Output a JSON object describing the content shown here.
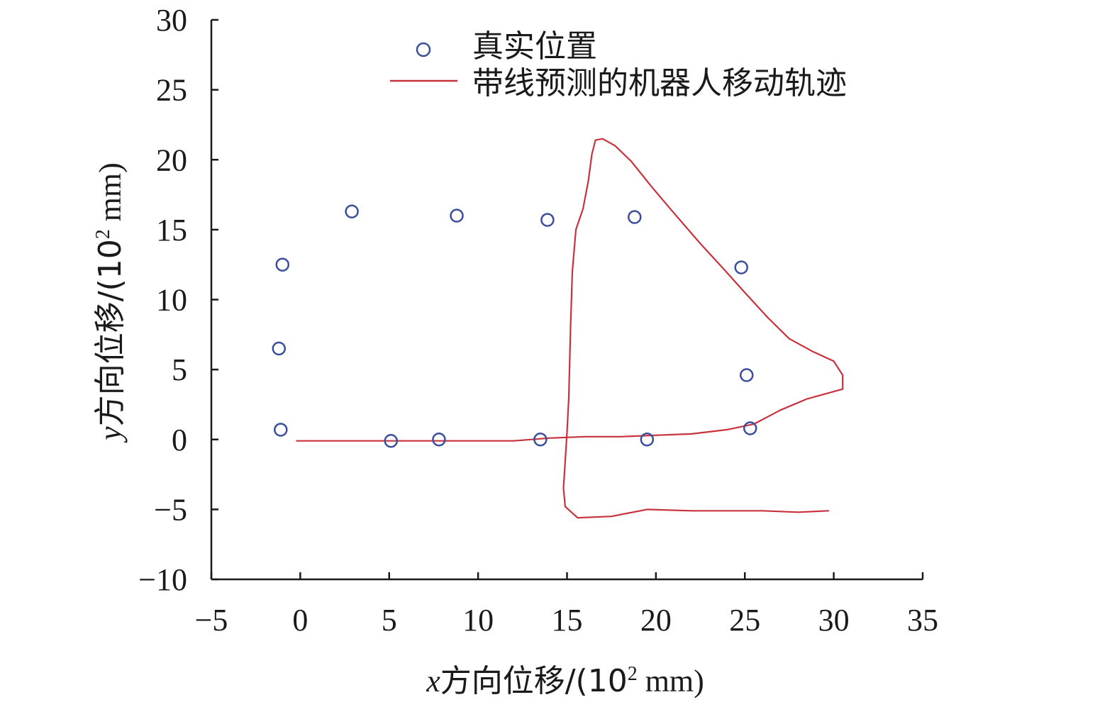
{
  "chart_data": {
    "type": "scatter",
    "title": "",
    "xlabel": {
      "var": "x",
      "text": "方向位移/(10",
      "sup": "2",
      "unit": " mm)"
    },
    "ylabel": {
      "var": "y",
      "text": "方向位移/(10",
      "sup": "2",
      "unit": " mm)"
    },
    "xlim": [
      -5,
      35
    ],
    "ylim": [
      -10,
      30
    ],
    "xticks": [
      "−5",
      "0",
      "5",
      "10",
      "15",
      "20",
      "25",
      "30",
      "35"
    ],
    "yticks": [
      "30",
      "25",
      "20",
      "15",
      "10",
      "5",
      "0",
      "−5",
      "−10"
    ],
    "grid": false,
    "legend_position": "top-center",
    "series": [
      {
        "name": "真实位置",
        "kind": "scatter",
        "marker": "open-circle",
        "color": "#3b4e9c",
        "points": [
          [
            -1.1,
            0.7
          ],
          [
            -1.2,
            6.5
          ],
          [
            -1.0,
            12.5
          ],
          [
            2.9,
            16.3
          ],
          [
            8.8,
            16.0
          ],
          [
            13.9,
            15.7
          ],
          [
            18.8,
            15.9
          ],
          [
            24.8,
            12.3
          ],
          [
            25.1,
            4.6
          ],
          [
            25.3,
            0.8
          ],
          [
            19.5,
            0.0
          ],
          [
            13.5,
            0.0
          ],
          [
            7.8,
            0.0
          ],
          [
            5.1,
            -0.1
          ]
        ]
      },
      {
        "name": "带线预测的机器人移动轨迹",
        "kind": "line",
        "color": "#c8323c",
        "points": [
          [
            -0.2,
            -0.1
          ],
          [
            3.0,
            -0.1
          ],
          [
            7.0,
            -0.1
          ],
          [
            10.0,
            -0.1
          ],
          [
            12.0,
            -0.1
          ],
          [
            14.0,
            0.1
          ],
          [
            16.0,
            0.2
          ],
          [
            18.0,
            0.2
          ],
          [
            20.0,
            0.3
          ],
          [
            22.0,
            0.4
          ],
          [
            24.0,
            0.7
          ],
          [
            25.5,
            1.1
          ],
          [
            27.0,
            2.1
          ],
          [
            28.5,
            2.9
          ],
          [
            30.5,
            3.6
          ],
          [
            30.5,
            4.6
          ],
          [
            30.0,
            5.6
          ],
          [
            28.8,
            6.3
          ],
          [
            27.5,
            7.2
          ],
          [
            26.3,
            8.7
          ],
          [
            25.0,
            10.5
          ],
          [
            23.8,
            12.2
          ],
          [
            22.5,
            14.0
          ],
          [
            21.0,
            16.2
          ],
          [
            19.8,
            18.0
          ],
          [
            18.6,
            19.9
          ],
          [
            17.7,
            21.0
          ],
          [
            17.0,
            21.5
          ],
          [
            16.6,
            21.4
          ],
          [
            16.4,
            20.4
          ],
          [
            16.2,
            18.5
          ],
          [
            15.9,
            16.5
          ],
          [
            15.5,
            15.0
          ],
          [
            15.3,
            12.0
          ],
          [
            15.2,
            8.0
          ],
          [
            15.1,
            3.0
          ],
          [
            15.0,
            0.5
          ],
          [
            14.9,
            -1.5
          ],
          [
            14.8,
            -3.5
          ],
          [
            14.9,
            -4.8
          ],
          [
            15.6,
            -5.6
          ],
          [
            17.5,
            -5.5
          ],
          [
            19.5,
            -5.0
          ],
          [
            22.0,
            -5.1
          ],
          [
            24.0,
            -5.1
          ],
          [
            26.0,
            -5.1
          ],
          [
            28.0,
            -5.2
          ],
          [
            29.7,
            -5.1
          ]
        ]
      }
    ]
  }
}
